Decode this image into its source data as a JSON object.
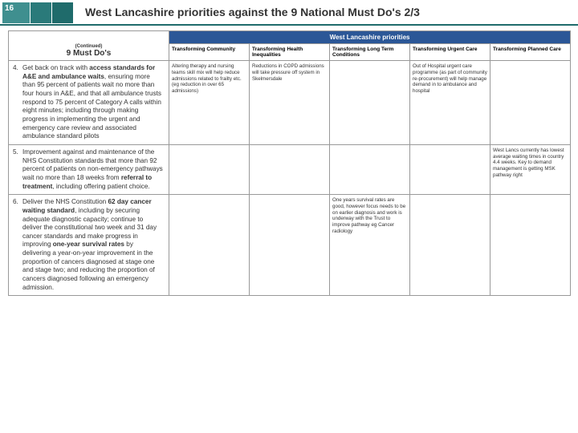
{
  "header": {
    "page_number": "16",
    "title": "West Lancashire priorities against the 9 National Must Do's  2/3",
    "accent_color": "#1f6b6b",
    "block_colors": [
      "#2a7a7a",
      "#1f6b6b"
    ]
  },
  "table": {
    "banner_label": "West Lancashire priorities",
    "banner_bg": "#2b5797",
    "must_do_header": {
      "continued": "(Continued)",
      "main": "9 Must Do's"
    },
    "columns": [
      "Transforming Community",
      "Transforming Health Inequalities",
      "Transforming Long Term Conditions",
      "Transforming Urgent Care",
      "Transforming Planned Care"
    ],
    "col_widths": [
      "200px",
      "100px",
      "100px",
      "100px",
      "100px",
      "100px"
    ],
    "rows": [
      {
        "num": "4.",
        "must_do_html": "Get back on track with <b>access standards for A&E and ambulance waits</b>, ensuring more than 95 percent of patients wait no more than four hours in A&E, and that all ambulance trusts respond to 75 percent of Category A calls within eight minutes; including through making progress in implementing the urgent and emergency care review and associated ambulance standard pilots",
        "cells": [
          "Altering therapy and nursing teams skill mix will help reduce admissions related to frailty etc. (eg reduction in over 65 admissions)",
          "Reductions in COPD admissions will take pressure off system in Skelmersdale",
          "",
          "Out of Hospital urgent care programme (as part of community re-procurement) will help manage demand in to ambulance and hospital",
          ""
        ]
      },
      {
        "num": "5.",
        "must_do_html": "Improvement against and maintenance of the NHS Constitution standards that more than 92 percent of patients on non-emergency pathways wait no more than 18 weeks from <b>referral to treatment</b>, including offering patient choice.",
        "cells": [
          "",
          "",
          "",
          "",
          "West Lancs currently has lowest average waiting times in country 4.4 weeks. Key to demand management is getting MSK pathway right"
        ]
      },
      {
        "num": "6.",
        "must_do_html": "Deliver the NHS Constitution <b>62 day cancer waiting standard</b>, including by securing adequate diagnostic capacity; continue to deliver the constitutional two week and 31 day cancer standards and make progress in improving <b>one-year survival rates</b> by delivering a year-on-year improvement in the proportion of cancers diagnosed at stage one and stage two; and reducing the proportion of cancers diagnosed following an emergency admission.",
        "cells": [
          "",
          "",
          "One years survival rates are good, however focus needs to be on earlier diagnosis and work is underway with the Trust to improve pathway eg Cancer radiology",
          "",
          ""
        ]
      }
    ]
  }
}
